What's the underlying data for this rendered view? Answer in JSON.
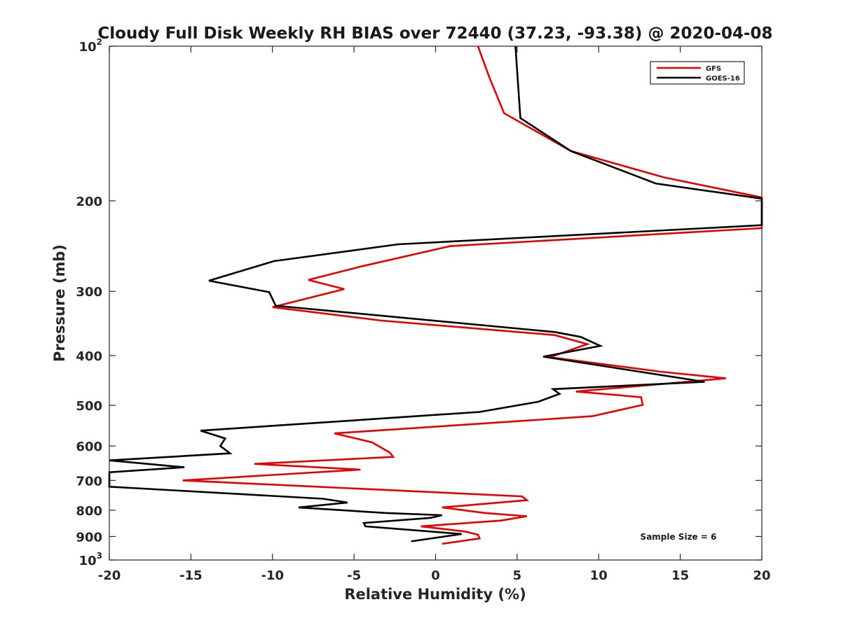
{
  "chart_data": {
    "type": "line",
    "title": "Cloudy Full Disk Weekly RH BIAS over 72440 (37.23, -93.38) @ 2020-04-08",
    "xlabel": "Relative Humidity (%)",
    "ylabel": "Pressure (mb)",
    "xlim": [
      -20,
      20
    ],
    "ylim": [
      100,
      1000
    ],
    "y_scale": "log",
    "y_reversed": true,
    "grid": false,
    "x_ticks": [
      {
        "value": -20,
        "label": "-20"
      },
      {
        "value": -15,
        "label": "-15"
      },
      {
        "value": -10,
        "label": "-10"
      },
      {
        "value": -5,
        "label": "-5"
      },
      {
        "value": 0,
        "label": "0"
      },
      {
        "value": 5,
        "label": "5"
      },
      {
        "value": 10,
        "label": "10"
      },
      {
        "value": 15,
        "label": "15"
      },
      {
        "value": 20,
        "label": "20"
      }
    ],
    "y_ticks": [
      {
        "value": 100,
        "label": "10",
        "exp": "2"
      },
      {
        "value": 200,
        "label": "200"
      },
      {
        "value": 300,
        "label": "300"
      },
      {
        "value": 400,
        "label": "400"
      },
      {
        "value": 500,
        "label": "500"
      },
      {
        "value": 600,
        "label": "600"
      },
      {
        "value": 700,
        "label": "700"
      },
      {
        "value": 800,
        "label": "800"
      },
      {
        "value": 900,
        "label": "900"
      },
      {
        "value": 1000,
        "label": "10",
        "exp": "3"
      }
    ],
    "legend_position": "top-right",
    "annotation": "Sample Size = 6",
    "series": [
      {
        "name": "GFS",
        "color": "#e60000",
        "points": [
          [
            2.6,
            100
          ],
          [
            3.3,
            115
          ],
          [
            4.2,
            135
          ],
          [
            8.3,
            160
          ],
          [
            14.0,
            180
          ],
          [
            20.0,
            197
          ],
          [
            20.0,
            226
          ],
          [
            0.9,
            245
          ],
          [
            -4.5,
            268
          ],
          [
            -7.8,
            285
          ],
          [
            -5.6,
            297
          ],
          [
            -10.0,
            322
          ],
          [
            -3.3,
            342
          ],
          [
            7.3,
            365
          ],
          [
            9.3,
            380
          ],
          [
            7.0,
            403
          ],
          [
            13.8,
            430
          ],
          [
            17.8,
            443
          ],
          [
            8.6,
            470
          ],
          [
            12.6,
            482
          ],
          [
            12.7,
            499
          ],
          [
            9.6,
            525
          ],
          [
            -6.2,
            567
          ],
          [
            -3.9,
            590
          ],
          [
            -2.8,
            618
          ],
          [
            -2.6,
            630
          ],
          [
            -11.1,
            650
          ],
          [
            -4.6,
            667
          ],
          [
            -15.5,
            700
          ],
          [
            5.3,
            752
          ],
          [
            5.6,
            765
          ],
          [
            0.4,
            790
          ],
          [
            3.0,
            810
          ],
          [
            5.6,
            822
          ],
          [
            4.0,
            838
          ],
          [
            -0.9,
            860
          ],
          [
            1.8,
            880
          ],
          [
            2.6,
            893
          ],
          [
            2.7,
            908
          ],
          [
            0.4,
            930
          ]
        ]
      },
      {
        "name": "GOES-16",
        "color": "#000000",
        "points": [
          [
            4.9,
            100
          ],
          [
            5.2,
            138
          ],
          [
            8.3,
            160
          ],
          [
            13.5,
            185
          ],
          [
            20.0,
            198
          ],
          [
            20.0,
            223
          ],
          [
            -2.3,
            243
          ],
          [
            -9.9,
            262
          ],
          [
            -13.9,
            286
          ],
          [
            -10.2,
            301
          ],
          [
            -9.8,
            320
          ],
          [
            7.3,
            360
          ],
          [
            8.9,
            368
          ],
          [
            10.1,
            383
          ],
          [
            6.6,
            402
          ],
          [
            16.5,
            450
          ],
          [
            7.2,
            465
          ],
          [
            7.6,
            475
          ],
          [
            6.3,
            492
          ],
          [
            2.7,
            515
          ],
          [
            -14.4,
            560
          ],
          [
            -12.9,
            580
          ],
          [
            -13.2,
            600
          ],
          [
            -12.6,
            620
          ],
          [
            -20.0,
            640
          ],
          [
            -15.4,
            660
          ],
          [
            -20.0,
            675
          ],
          [
            -20.0,
            720
          ],
          [
            -6.9,
            760
          ],
          [
            -5.4,
            773
          ],
          [
            -8.4,
            790
          ],
          [
            -3.1,
            810
          ],
          [
            0.4,
            818
          ],
          [
            -0.3,
            828
          ],
          [
            -4.4,
            847
          ],
          [
            -4.3,
            860
          ],
          [
            1.6,
            890
          ],
          [
            -1.5,
            920
          ]
        ]
      }
    ]
  }
}
